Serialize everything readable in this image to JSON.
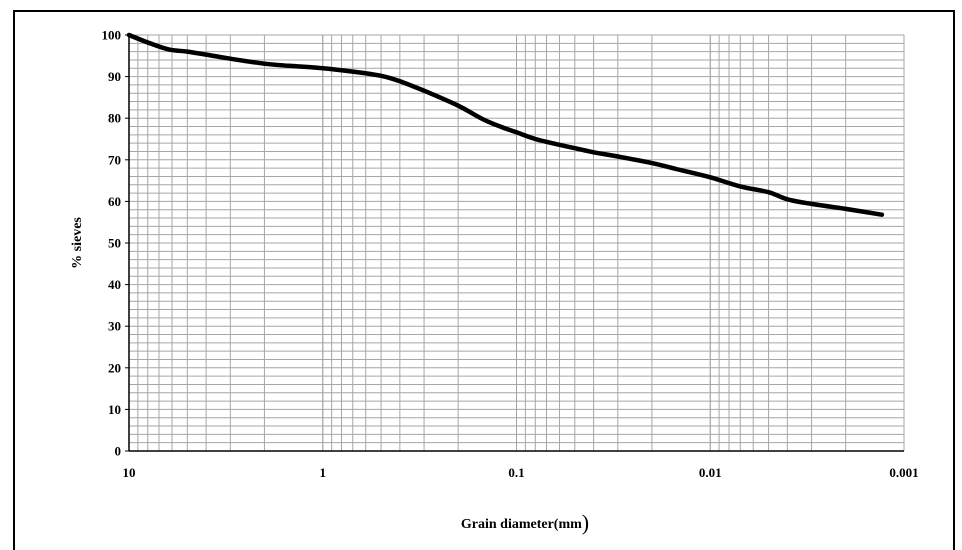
{
  "chart_data": {
    "type": "line",
    "title": "",
    "xlabel": "Grain diameter(mm)",
    "ylabel": "% sieves",
    "xscale": "log",
    "x_reversed": true,
    "xlim": [
      10,
      0.001
    ],
    "ylim": [
      0,
      100
    ],
    "x_tick_labels": [
      "10",
      "1",
      "0.1",
      "0.01",
      "0.001"
    ],
    "x_tick_values": [
      10,
      1,
      0.1,
      0.01,
      0.001
    ],
    "y_tick_labels": [
      "0",
      "10",
      "20",
      "30",
      "40",
      "50",
      "60",
      "70",
      "80",
      "90",
      "100"
    ],
    "y_tick_values": [
      0,
      10,
      20,
      30,
      40,
      50,
      60,
      70,
      80,
      90,
      100
    ],
    "grid": true,
    "line_color": "#000000",
    "series": [
      {
        "x": [
          10,
          7.8,
          6.2,
          5,
          4,
          3,
          2,
          1.5,
          1,
          0.7,
          0.5,
          0.4,
          0.3,
          0.2,
          0.15,
          0.12,
          0.1,
          0.08,
          0.06,
          0.05,
          0.04,
          0.03,
          0.02,
          0.015,
          0.01,
          0.007,
          0.005,
          0.004,
          0.003,
          0.002,
          0.0013
        ],
        "y": [
          100,
          98,
          96.5,
          96,
          95.3,
          94.3,
          93.1,
          92.6,
          92,
          91.2,
          90.2,
          88.9,
          86.6,
          83,
          79.8,
          77.9,
          76.6,
          75,
          73.6,
          72.8,
          71.8,
          70.8,
          69.2,
          67.8,
          65.8,
          63.6,
          62.2,
          60.5,
          59.4,
          58.2,
          56.8
        ]
      }
    ]
  }
}
